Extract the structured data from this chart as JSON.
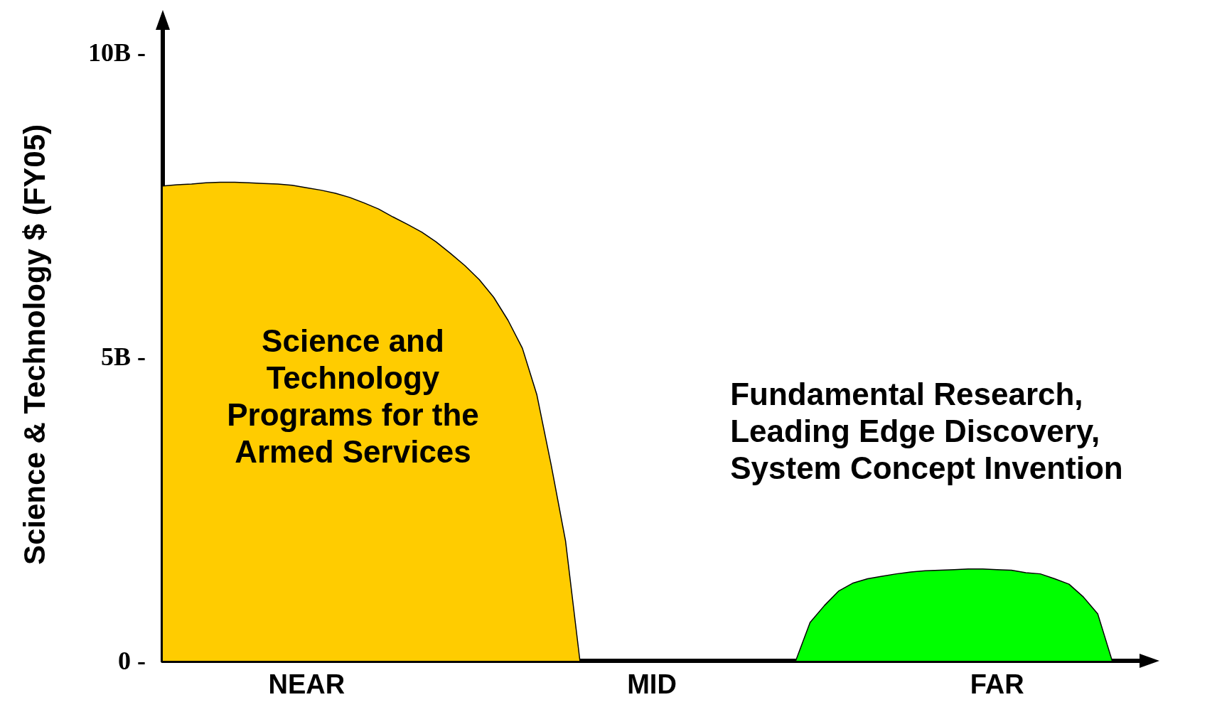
{
  "chart_data": {
    "type": "area",
    "ylabel": "Science & Technology $ (FY05)",
    "categories": [
      null,
      null,
      null,
      null,
      null,
      null,
      null,
      null,
      null,
      null,
      "NEAR",
      null,
      null,
      null,
      null,
      null,
      null,
      null,
      null,
      null,
      null,
      null,
      null,
      null,
      null,
      null,
      null,
      null,
      null,
      null,
      null,
      null,
      null,
      null,
      "MID",
      null,
      null,
      null,
      null,
      null,
      null,
      null,
      null,
      null,
      null,
      null,
      null,
      null,
      null,
      null,
      null,
      null,
      null,
      null,
      null,
      null,
      null,
      null,
      "FAR",
      null,
      null,
      null,
      null,
      null,
      null,
      null,
      null,
      null,
      null
    ],
    "ylim": [
      0,
      10.4
    ],
    "yticks": [
      {
        "value": 0,
        "label": "0 -"
      },
      {
        "value": 5,
        "label": "5B -"
      },
      {
        "value": 10,
        "label": "10B -"
      }
    ],
    "series": [
      {
        "color": "#ffcc00",
        "values": [
          7.81,
          7.83,
          7.84,
          7.86,
          7.87,
          7.87,
          7.86,
          7.85,
          7.84,
          7.82,
          7.78,
          7.74,
          7.69,
          7.62,
          7.53,
          7.43,
          7.3,
          7.18,
          7.05,
          6.89,
          6.7,
          6.5,
          6.27,
          5.98,
          5.6,
          5.14,
          4.38,
          3.22,
          1.97,
          0,
          null,
          null,
          null,
          null,
          null,
          null,
          null,
          null,
          null,
          null,
          null,
          null,
          null,
          null,
          null,
          null,
          null,
          null,
          null,
          null,
          null,
          null,
          null,
          null,
          null,
          null,
          null,
          null,
          null,
          null,
          null,
          null,
          null,
          null,
          null,
          null,
          null,
          null,
          null
        ]
      },
      {
        "color": "#00ff00",
        "values": [
          null,
          null,
          null,
          null,
          null,
          null,
          null,
          null,
          null,
          null,
          null,
          null,
          null,
          null,
          null,
          null,
          null,
          null,
          null,
          null,
          null,
          null,
          null,
          null,
          null,
          null,
          null,
          null,
          null,
          null,
          null,
          null,
          null,
          null,
          null,
          null,
          null,
          null,
          null,
          null,
          null,
          null,
          null,
          null,
          0,
          0.63,
          0.91,
          1.15,
          1.28,
          1.35,
          1.39,
          1.43,
          1.46,
          1.48,
          1.49,
          1.5,
          1.51,
          1.51,
          1.5,
          1.49,
          1.45,
          1.43,
          1.35,
          1.26,
          1.05,
          0.77,
          0,
          null,
          null
        ]
      }
    ],
    "annotations": [
      "Science and\nTechnology\nPrograms for the\nArmed Services",
      "Fundamental Research,\nLeading Edge Discovery,\nSystem Concept Invention"
    ]
  }
}
